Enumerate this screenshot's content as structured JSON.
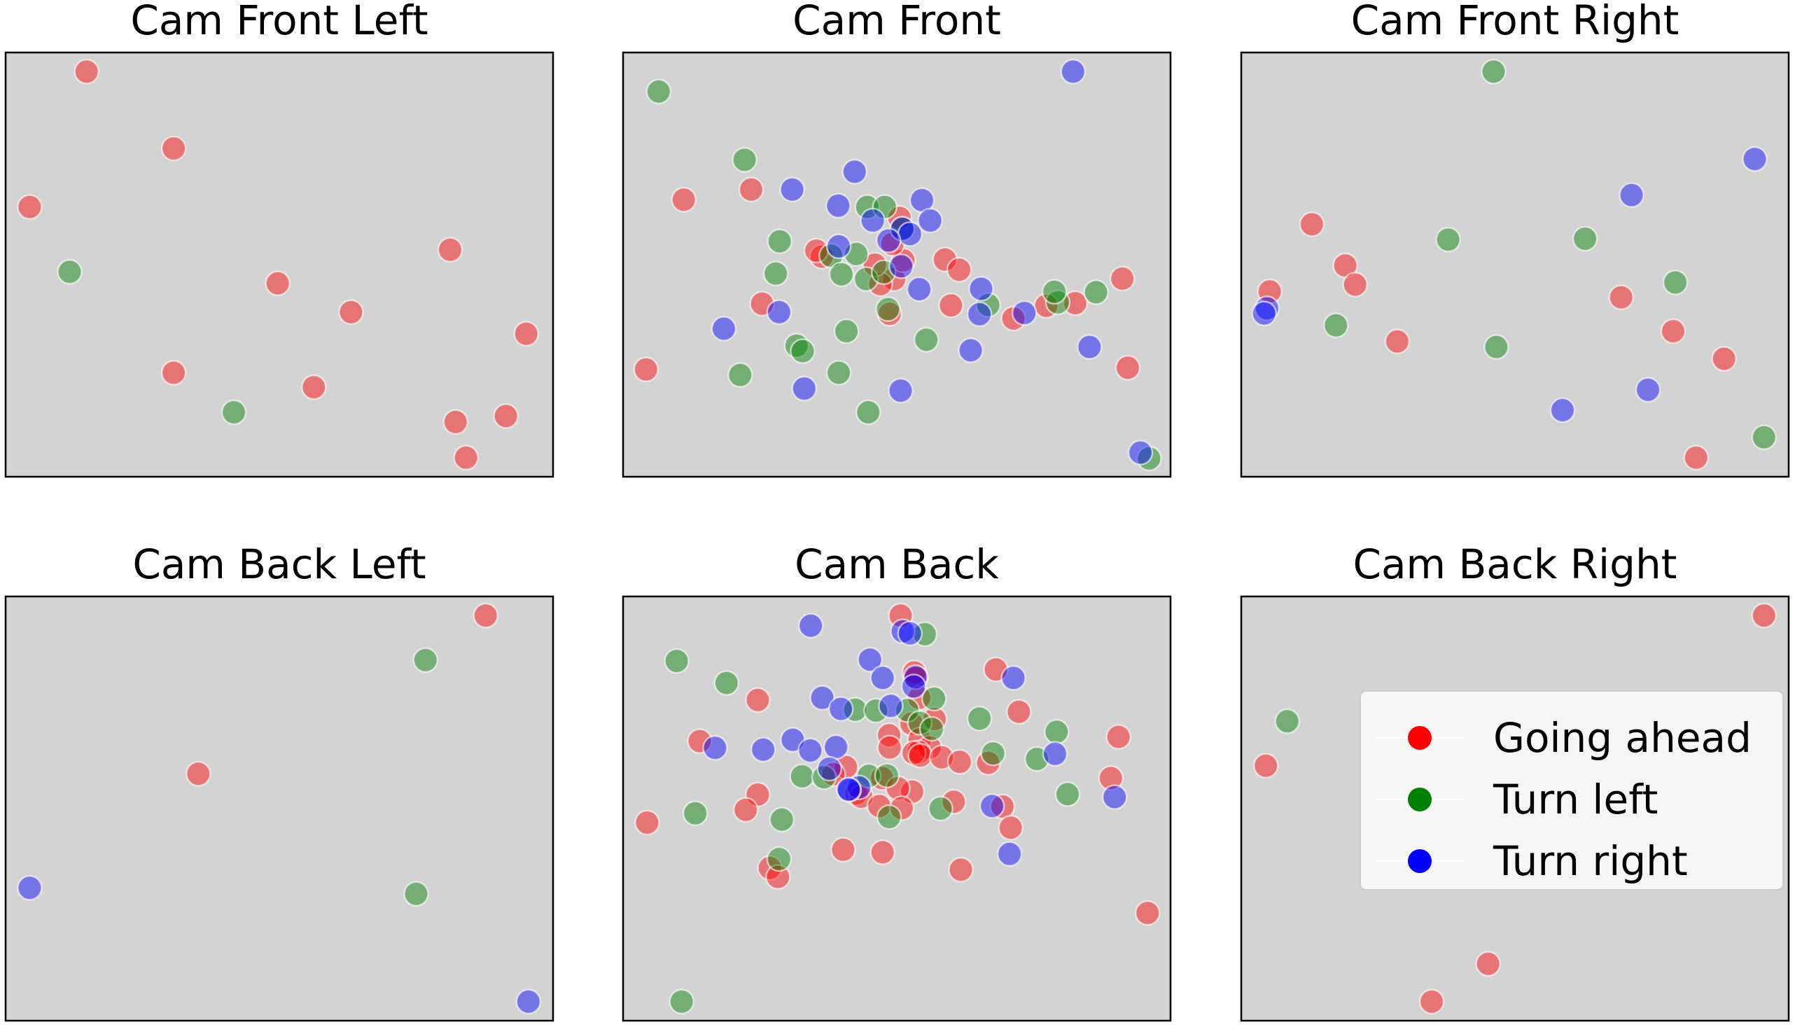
{
  "chart_data": {
    "type": "scatter",
    "point_alpha": 0.45,
    "colors": {
      "Going ahead": "#ff0000",
      "Turn left": "#008000",
      "Turn right": "#0000ff"
    },
    "plot_background": "#d3d3d3",
    "axis_ranges": {
      "x": [
        0,
        1
      ],
      "y": [
        0,
        1
      ]
    },
    "ticks": false,
    "grid": false,
    "legend": {
      "placement": "right",
      "panel": "Cam Back Right",
      "entries": [
        "Going ahead",
        "Turn left",
        "Turn right"
      ]
    },
    "panels": [
      {
        "title": "Cam Front Left",
        "series": [
          {
            "name": "Going ahead",
            "points": [
              [
                0.148,
                0.955
              ],
              [
                0.307,
                0.774
              ],
              [
                0.044,
                0.636
              ],
              [
                0.812,
                0.535
              ],
              [
                0.497,
                0.456
              ],
              [
                0.631,
                0.388
              ],
              [
                0.951,
                0.337
              ],
              [
                0.307,
                0.245
              ],
              [
                0.563,
                0.211
              ],
              [
                0.822,
                0.129
              ],
              [
                0.914,
                0.143
              ],
              [
                0.841,
                0.045
              ]
            ]
          },
          {
            "name": "Turn left",
            "points": [
              [
                0.117,
                0.483
              ],
              [
                0.417,
                0.152
              ]
            ]
          },
          {
            "name": "Turn right",
            "points": []
          }
        ]
      },
      {
        "title": "Cam Front",
        "series": [
          {
            "name": "Going ahead",
            "points": [
              [
                0.111,
                0.653
              ],
              [
                0.234,
                0.677
              ],
              [
                0.505,
                0.61
              ],
              [
                0.588,
                0.512
              ],
              [
                0.495,
                0.466
              ],
              [
                0.512,
                0.51
              ],
              [
                0.599,
                0.404
              ],
              [
                0.254,
                0.408
              ],
              [
                0.47,
                0.454
              ],
              [
                0.487,
                0.384
              ],
              [
                0.614,
                0.488
              ],
              [
                0.826,
                0.409
              ],
              [
                0.713,
                0.373
              ],
              [
                0.773,
                0.403
              ],
              [
                0.912,
                0.467
              ],
              [
                0.042,
                0.253
              ],
              [
                0.922,
                0.257
              ],
              [
                0.46,
                0.5
              ],
              [
                0.492,
                0.549
              ],
              [
                0.363,
                0.519
              ],
              [
                0.353,
                0.533
              ]
            ]
          },
          {
            "name": "Turn left",
            "points": [
              [
                0.065,
                0.908
              ],
              [
                0.222,
                0.747
              ],
              [
                0.446,
                0.636
              ],
              [
                0.478,
                0.636
              ],
              [
                0.51,
                0.584
              ],
              [
                0.38,
                0.521
              ],
              [
                0.399,
                0.477
              ],
              [
                0.426,
                0.525
              ],
              [
                0.279,
                0.479
              ],
              [
                0.444,
                0.466
              ],
              [
                0.476,
                0.482
              ],
              [
                0.667,
                0.405
              ],
              [
                0.794,
                0.411
              ],
              [
                0.864,
                0.435
              ],
              [
                0.788,
                0.436
              ],
              [
                0.484,
                0.395
              ],
              [
                0.408,
                0.343
              ],
              [
                0.554,
                0.323
              ],
              [
                0.317,
                0.309
              ],
              [
                0.328,
                0.296
              ],
              [
                0.214,
                0.24
              ],
              [
                0.394,
                0.245
              ],
              [
                0.448,
                0.152
              ],
              [
                0.286,
                0.555
              ],
              [
                0.961,
                0.043
              ]
            ]
          },
          {
            "name": "Turn right",
            "points": [
              [
                0.822,
                0.955
              ],
              [
                0.423,
                0.719
              ],
              [
                0.309,
                0.677
              ],
              [
                0.393,
                0.639
              ],
              [
                0.456,
                0.604
              ],
              [
                0.51,
                0.585
              ],
              [
                0.524,
                0.572
              ],
              [
                0.546,
                0.652
              ],
              [
                0.561,
                0.604
              ],
              [
                0.485,
                0.557
              ],
              [
                0.394,
                0.543
              ],
              [
                0.508,
                0.496
              ],
              [
                0.654,
                0.443
              ],
              [
                0.541,
                0.442
              ],
              [
                0.285,
                0.388
              ],
              [
                0.184,
                0.349
              ],
              [
                0.651,
                0.383
              ],
              [
                0.733,
                0.386
              ],
              [
                0.852,
                0.306
              ],
              [
                0.635,
                0.298
              ],
              [
                0.331,
                0.208
              ],
              [
                0.507,
                0.203
              ],
              [
                0.945,
                0.057
              ]
            ]
          }
        ]
      },
      {
        "title": "Cam Front Right",
        "series": [
          {
            "name": "Going ahead",
            "points": [
              [
                0.129,
                0.595
              ],
              [
                0.19,
                0.498
              ],
              [
                0.208,
                0.453
              ],
              [
                0.052,
                0.437
              ],
              [
                0.285,
                0.319
              ],
              [
                0.694,
                0.423
              ],
              [
                0.789,
                0.343
              ],
              [
                0.882,
                0.278
              ],
              [
                0.831,
                0.045
              ]
            ]
          },
          {
            "name": "Turn left",
            "points": [
              [
                0.461,
                0.955
              ],
              [
                0.378,
                0.559
              ],
              [
                0.628,
                0.561
              ],
              [
                0.793,
                0.458
              ],
              [
                0.173,
                0.357
              ],
              [
                0.466,
                0.306
              ],
              [
                0.955,
                0.093
              ]
            ]
          },
          {
            "name": "Turn right",
            "points": [
              [
                0.713,
                0.664
              ],
              [
                0.938,
                0.749
              ],
              [
                0.047,
                0.397
              ],
              [
                0.042,
                0.385
              ],
              [
                0.587,
                0.157
              ],
              [
                0.743,
                0.205
              ]
            ]
          }
        ]
      },
      {
        "title": "Cam Back Left",
        "series": [
          {
            "name": "Going ahead",
            "points": [
              [
                0.877,
                0.955
              ],
              [
                0.352,
                0.582
              ]
            ]
          },
          {
            "name": "Turn left",
            "points": [
              [
                0.767,
                0.85
              ],
              [
                0.75,
                0.299
              ]
            ]
          },
          {
            "name": "Turn right",
            "points": [
              [
                0.044,
                0.313
              ],
              [
                0.955,
                0.045
              ]
            ]
          }
        ]
      },
      {
        "title": "Cam Back",
        "series": [
          {
            "name": "Going ahead",
            "points": [
              [
                0.507,
                0.955
              ],
              [
                0.532,
                0.821
              ],
              [
                0.535,
                0.808
              ],
              [
                0.541,
                0.761
              ],
              [
                0.246,
                0.756
              ],
              [
                0.569,
                0.711
              ],
              [
                0.527,
                0.7
              ],
              [
                0.486,
                0.673
              ],
              [
                0.542,
                0.663
              ],
              [
                0.56,
                0.644
              ],
              [
                0.54,
                0.633
              ],
              [
                0.487,
                0.644
              ],
              [
                0.531,
                0.631
              ],
              [
                0.543,
                0.625
              ],
              [
                0.582,
                0.621
              ],
              [
                0.667,
                0.608
              ],
              [
                0.407,
                0.598
              ],
              [
                0.384,
                0.581
              ],
              [
                0.473,
                0.572
              ],
              [
                0.528,
                0.54
              ],
              [
                0.502,
                0.548
              ],
              [
                0.615,
                0.61
              ],
              [
                0.14,
                0.659
              ],
              [
                0.681,
                0.828
              ],
              [
                0.723,
                0.728
              ],
              [
                0.905,
                0.669
              ],
              [
                0.891,
                0.572
              ],
              [
                0.246,
                0.533
              ],
              [
                0.224,
                0.497
              ],
              [
                0.426,
                0.536
              ],
              [
                0.435,
                0.528
              ],
              [
                0.468,
                0.506
              ],
              [
                0.509,
                0.501
              ],
              [
                0.604,
                0.516
              ],
              [
                0.693,
                0.505
              ],
              [
                0.402,
                0.403
              ],
              [
                0.268,
                0.36
              ],
              [
                0.044,
                0.467
              ],
              [
                0.474,
                0.397
              ],
              [
                0.283,
                0.339
              ],
              [
                0.617,
                0.356
              ],
              [
                0.708,
                0.455
              ],
              [
                0.958,
                0.254
              ]
            ]
          },
          {
            "name": "Turn left",
            "points": [
              [
                0.551,
                0.911
              ],
              [
                0.098,
                0.848
              ],
              [
                0.189,
                0.796
              ],
              [
                0.568,
                0.759
              ],
              [
                0.424,
                0.733
              ],
              [
                0.462,
                0.731
              ],
              [
                0.519,
                0.732
              ],
              [
                0.542,
                0.702
              ],
              [
                0.564,
                0.688
              ],
              [
                0.651,
                0.712
              ],
              [
                0.792,
                0.681
              ],
              [
                0.676,
                0.63
              ],
              [
                0.756,
                0.617
              ],
              [
                0.327,
                0.576
              ],
              [
                0.449,
                0.577
              ],
              [
                0.482,
                0.578
              ],
              [
                0.367,
                0.574
              ],
              [
                0.812,
                0.534
              ],
              [
                0.29,
                0.474
              ],
              [
                0.132,
                0.489
              ],
              [
                0.486,
                0.48
              ],
              [
                0.58,
                0.5
              ],
              [
                0.285,
                0.381
              ],
              [
                0.107,
                0.045
              ]
            ]
          },
          {
            "name": "Turn right",
            "points": [
              [
                0.343,
                0.931
              ],
              [
                0.511,
                0.918
              ],
              [
                0.524,
                0.913
              ],
              [
                0.451,
                0.851
              ],
              [
                0.474,
                0.808
              ],
              [
                0.534,
                0.81
              ],
              [
                0.531,
                0.788
              ],
              [
                0.364,
                0.761
              ],
              [
                0.398,
                0.735
              ],
              [
                0.489,
                0.742
              ],
              [
                0.713,
                0.808
              ],
              [
                0.31,
                0.662
              ],
              [
                0.256,
                0.639
              ],
              [
                0.342,
                0.637
              ],
              [
                0.389,
                0.645
              ],
              [
                0.789,
                0.629
              ],
              [
                0.168,
                0.643
              ],
              [
                0.377,
                0.594
              ],
              [
                0.431,
                0.55
              ],
              [
                0.413,
                0.544
              ],
              [
                0.674,
                0.506
              ],
              [
                0.898,
                0.527
              ],
              [
                0.706,
                0.393
              ],
              [
                0.412,
                0.545
              ]
            ]
          }
        ]
      },
      {
        "title": "Cam Back Right",
        "series": [
          {
            "name": "Going ahead",
            "points": [
              [
                0.955,
                0.955
              ],
              [
                0.045,
                0.601
              ],
              [
                0.451,
                0.134
              ],
              [
                0.348,
                0.045
              ]
            ]
          },
          {
            "name": "Turn left",
            "points": [
              [
                0.084,
                0.706
              ]
            ]
          },
          {
            "name": "Turn right",
            "points": []
          }
        ]
      }
    ]
  }
}
